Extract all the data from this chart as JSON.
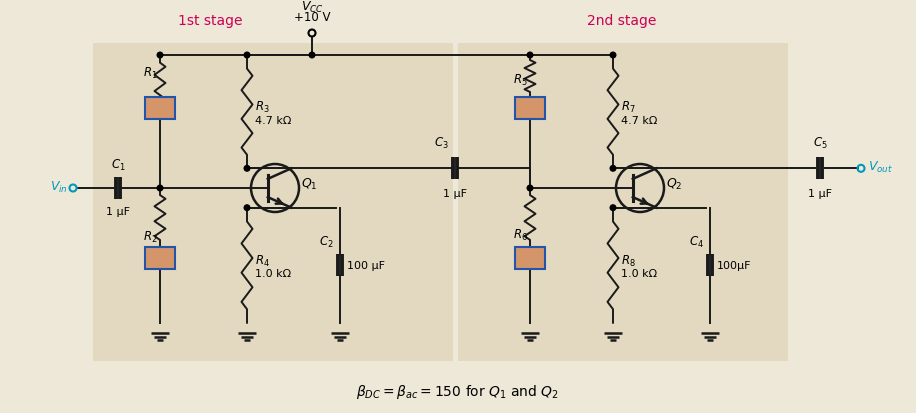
{
  "bg_outer": "#ede8d8",
  "bg_stage": "#e2d9c0",
  "wire_color": "#1a1a1a",
  "resistor_fill": "#d4956a",
  "resistor_edge": "#2255aa",
  "text_color_magenta": "#cc0055",
  "text_color_cyan": "#0099bb",
  "text_color_black": "#111111",
  "stage1_label": "1st stage",
  "stage2_label": "2nd stage",
  "vcc_label": "$V_{CC}$",
  "vcc_value": "+10 V",
  "vin_label": "$V_{in}$",
  "vout_label": "$V_{out}$",
  "formula": "$\\beta_{DC} = \\beta_{ac} = 150$ for $Q_1$ and $Q_2$",
  "R3_val": "4.7 kΩ",
  "R4_val": "1.0 kΩ",
  "R7_val": "4.7 kΩ",
  "R8_val": "1.0 kΩ",
  "C1_val": "1 μF",
  "C2_val": "100 μF",
  "C3_val": "1 μF",
  "C4_val": "100μF",
  "C5_val": "1 μF"
}
